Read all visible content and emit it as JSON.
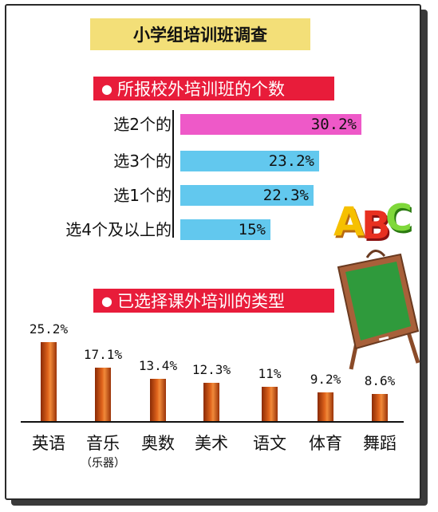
{
  "title": "小学组培训班调查",
  "chart_data": [
    {
      "type": "bar",
      "orientation": "horizontal",
      "title": "所报校外培训班的个数",
      "categories": [
        "选2个的",
        "选3个的",
        "选1个的",
        "选4个及以上的"
      ],
      "values": [
        30.2,
        23.2,
        22.3,
        15
      ],
      "value_labels": [
        "30.2%",
        "23.2%",
        "22.3%",
        "15%"
      ],
      "colors": [
        "#ee59c8",
        "#62c8ee",
        "#62c8ee",
        "#62c8ee"
      ],
      "xlim": [
        0,
        32
      ]
    },
    {
      "type": "bar",
      "orientation": "vertical",
      "title": "已选择课外培训的类型",
      "categories": [
        "英语",
        "音乐",
        "奥数",
        "美术",
        "语文",
        "体育",
        "舞蹈"
      ],
      "category_note": "（乐器）",
      "values": [
        25.2,
        17.1,
        13.4,
        12.3,
        11,
        9.2,
        8.6
      ],
      "value_labels": [
        "25.2%",
        "17.1%",
        "13.4%",
        "12.3%",
        "11%",
        "9.2%",
        "8.6%"
      ],
      "ylim": [
        0,
        26
      ]
    }
  ],
  "decoration": {
    "letters": [
      "A",
      "B",
      "C"
    ],
    "icons": [
      "abc-letters-icon",
      "chalkboard-icon"
    ]
  },
  "colors": {
    "section_head": "#e81c3a",
    "title_box": "#f3df78",
    "chalkboard_green": "#2f9a3c",
    "chalkboard_frame": "#a8603a"
  }
}
